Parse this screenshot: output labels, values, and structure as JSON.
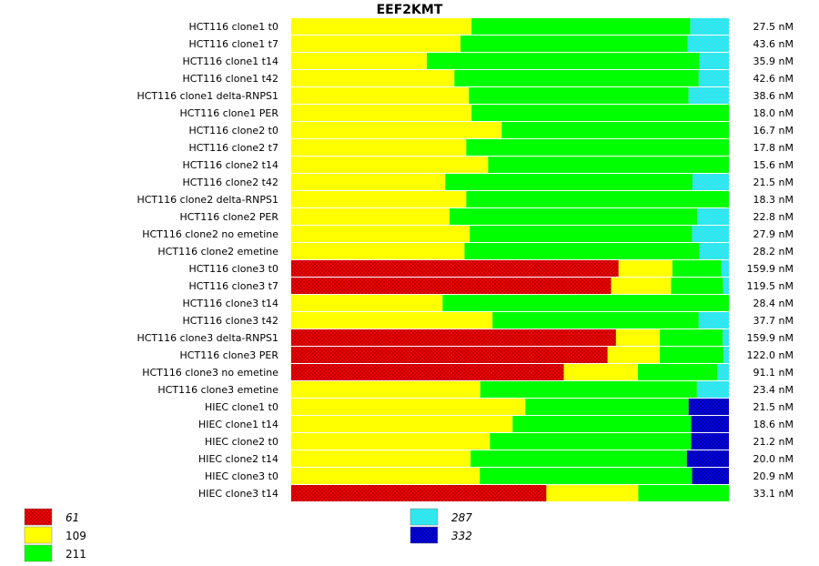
{
  "chart_data": {
    "type": "bar",
    "orientation": "horizontal",
    "stacked": "percent",
    "title": "EEF2KMT",
    "xlim": [
      0,
      100
    ],
    "legend": [
      {
        "name": "61",
        "italic": true,
        "color": "#ff0000",
        "pattern": "crosshatch"
      },
      {
        "name": "109",
        "italic": false,
        "color": "#ffff00",
        "pattern": "solid"
      },
      {
        "name": "211",
        "italic": false,
        "color": "#00ff00",
        "pattern": "solid"
      },
      {
        "name": "287",
        "italic": true,
        "color": "#00ffff",
        "pattern": "crosshatch"
      },
      {
        "name": "332",
        "italic": true,
        "color": "#0000ff",
        "pattern": "crosshatch"
      }
    ],
    "series_order": [
      "61",
      "109",
      "211",
      "287",
      "332"
    ],
    "rows": [
      {
        "label": "HCT116 clone1 t0",
        "total": "27.5 nM",
        "values": [
          0,
          41.2,
          50.0,
          8.8,
          0
        ]
      },
      {
        "label": "HCT116 clone1 t7",
        "total": "43.6 nM",
        "values": [
          0,
          38.7,
          51.9,
          9.4,
          0
        ]
      },
      {
        "label": "HCT116 clone1 t14",
        "total": "35.9 nM",
        "values": [
          0,
          31.0,
          62.3,
          6.7,
          0
        ]
      },
      {
        "label": "HCT116 clone1 t42",
        "total": "42.6 nM",
        "values": [
          0,
          37.3,
          55.8,
          6.9,
          0
        ]
      },
      {
        "label": "HCT116 clone1 delta-RNPS1",
        "total": "38.6 nM",
        "values": [
          0,
          40.6,
          50.2,
          9.2,
          0
        ]
      },
      {
        "label": "HCT116 clone1 PER",
        "total": "18.0 nM",
        "values": [
          0,
          41.2,
          58.8,
          0,
          0
        ]
      },
      {
        "label": "HCT116 clone2 t0",
        "total": "16.7 nM",
        "values": [
          0,
          48.1,
          51.9,
          0,
          0
        ]
      },
      {
        "label": "HCT116 clone2 t7",
        "total": "17.8 nM",
        "values": [
          0,
          40.0,
          60.0,
          0,
          0
        ]
      },
      {
        "label": "HCT116 clone2 t14",
        "total": "15.6 nM",
        "values": [
          0,
          45.0,
          55.0,
          0,
          0
        ]
      },
      {
        "label": "HCT116 clone2 t42",
        "total": "21.5 nM",
        "values": [
          0,
          35.2,
          56.5,
          8.3,
          0
        ]
      },
      {
        "label": "HCT116 clone2 delta-RNPS1",
        "total": "18.3 nM",
        "values": [
          0,
          40.0,
          60.0,
          0,
          0
        ]
      },
      {
        "label": "HCT116 clone2 PER",
        "total": "22.8 nM",
        "values": [
          0,
          36.2,
          56.6,
          7.2,
          0
        ]
      },
      {
        "label": "HCT116 clone2 no emetine",
        "total": "27.9 nM",
        "values": [
          0,
          40.8,
          50.8,
          8.4,
          0
        ]
      },
      {
        "label": "HCT116 clone2 emetine",
        "total": "28.2 nM",
        "values": [
          0,
          39.6,
          53.7,
          6.7,
          0
        ]
      },
      {
        "label": "HCT116 clone3 t0",
        "total": "159.9 nM",
        "values": [
          74.8,
          12.3,
          11.2,
          1.7,
          0
        ]
      },
      {
        "label": "HCT116 clone3 t7",
        "total": "119.5 nM",
        "values": [
          73.1,
          13.7,
          11.9,
          1.3,
          0
        ]
      },
      {
        "label": "HCT116 clone3 t14",
        "total": "28.4 nM",
        "values": [
          0,
          34.6,
          65.4,
          0,
          0
        ]
      },
      {
        "label": "HCT116 clone3 t42",
        "total": "37.7 nM",
        "values": [
          0,
          46.0,
          47.1,
          6.9,
          0
        ]
      },
      {
        "label": "HCT116 clone3 delta-RNPS1",
        "total": "159.9 nM",
        "values": [
          74.2,
          10.0,
          14.4,
          1.4,
          0
        ]
      },
      {
        "label": "HCT116 clone3 PER",
        "total": "122.0 nM",
        "values": [
          72.3,
          11.9,
          14.6,
          1.2,
          0
        ]
      },
      {
        "label": "HCT116 clone3 no emetine",
        "total": "91.1 nM",
        "values": [
          62.3,
          16.9,
          18.1,
          2.7,
          0
        ]
      },
      {
        "label": "HCT116 clone3 emetine",
        "total": "23.4 nM",
        "values": [
          0,
          43.2,
          49.5,
          7.3,
          0
        ]
      },
      {
        "label": "HIEC clone1 t0",
        "total": "21.5 nM",
        "values": [
          0,
          53.5,
          37.3,
          0,
          9.2
        ]
      },
      {
        "label": "HIEC clone1 t14",
        "total": "18.6 nM",
        "values": [
          0,
          50.6,
          40.8,
          0,
          8.6
        ]
      },
      {
        "label": "HIEC clone2 t0",
        "total": "21.2 nM",
        "values": [
          0,
          45.4,
          46.0,
          0,
          8.6
        ]
      },
      {
        "label": "HIEC clone2 t14",
        "total": "20.0 nM",
        "values": [
          0,
          41.0,
          49.4,
          0,
          9.6
        ]
      },
      {
        "label": "HIEC clone3 t0",
        "total": "20.9 nM",
        "values": [
          0,
          43.1,
          48.5,
          0,
          8.4
        ]
      },
      {
        "label": "HIEC clone3 t14",
        "total": "33.1 nM",
        "values": [
          58.3,
          21.0,
          20.7,
          0,
          0
        ]
      }
    ]
  }
}
